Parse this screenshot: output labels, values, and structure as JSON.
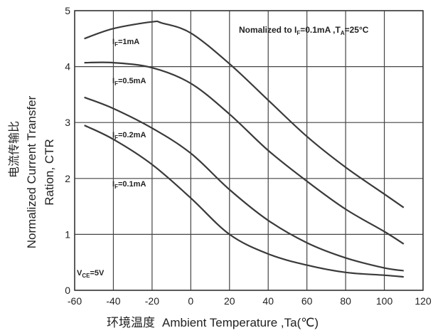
{
  "chart_data": {
    "type": "line",
    "xlabel_cn": "环境温度",
    "xlabel_en": "Ambient Temperature ,Ta(℃)",
    "ylabel_cn": "电流传输比",
    "ylabel_en_1": "Normalized Current Transfer",
    "ylabel_en_2": "Ration,  CTR",
    "note": {
      "prefix": "Nomalized to I",
      "sub1": "F",
      "mid": "=0.1mA ,T",
      "sub2": "A",
      "suffix": "=25°C"
    },
    "condition": {
      "prefix": "V",
      "sub": "CE",
      "suffix": "=5V"
    },
    "xlim": [
      -60,
      120
    ],
    "ylim": [
      0,
      5
    ],
    "xticks": [
      -60,
      -40,
      -20,
      0,
      20,
      40,
      60,
      80,
      100,
      120
    ],
    "yticks": [
      0,
      1,
      2,
      3,
      4,
      5
    ],
    "grid": true,
    "series": [
      {
        "label_prefix": "I",
        "label_sub": "F",
        "label_suffix": "=1mA",
        "x": [
          -55,
          -40,
          -20,
          -15,
          0,
          20,
          40,
          60,
          80,
          100,
          110
        ],
        "y": [
          4.5,
          4.68,
          4.8,
          4.78,
          4.6,
          4.05,
          3.4,
          2.75,
          2.2,
          1.72,
          1.48
        ]
      },
      {
        "label_prefix": "I",
        "label_sub": "F",
        "label_suffix": "=0.5mA",
        "x": [
          -55,
          -40,
          -20,
          0,
          20,
          40,
          60,
          80,
          100,
          110
        ],
        "y": [
          4.07,
          4.07,
          3.98,
          3.7,
          3.15,
          2.5,
          1.95,
          1.45,
          1.05,
          0.83
        ]
      },
      {
        "label_prefix": "I",
        "label_sub": "F",
        "label_suffix": "=0.2mA",
        "x": [
          -55,
          -40,
          -20,
          0,
          20,
          40,
          60,
          80,
          100,
          110
        ],
        "y": [
          3.45,
          3.25,
          2.9,
          2.45,
          1.8,
          1.25,
          0.85,
          0.58,
          0.4,
          0.35
        ]
      },
      {
        "label_prefix": "I",
        "label_sub": "F",
        "label_suffix": "=0.1mA",
        "x": [
          -55,
          -40,
          -20,
          0,
          20,
          40,
          60,
          80,
          100,
          110
        ],
        "y": [
          2.95,
          2.7,
          2.25,
          1.65,
          1.0,
          0.65,
          0.45,
          0.32,
          0.27,
          0.24
        ]
      }
    ]
  }
}
